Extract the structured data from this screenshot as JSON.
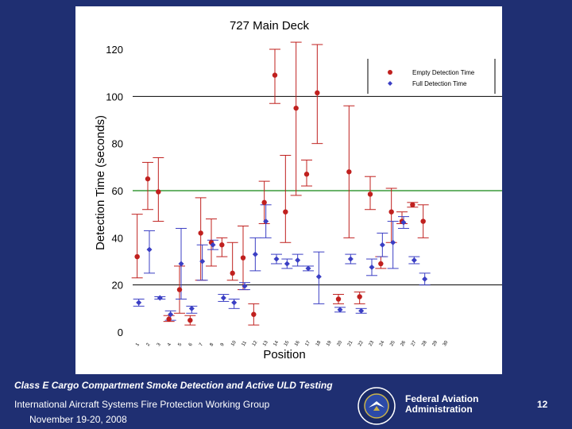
{
  "footer": {
    "title": "Class E Cargo Compartment Smoke Detection and Active ULD Testing",
    "org": "International Aircraft Systems Fire Protection Working Group",
    "date": "November 19-20, 2008",
    "faa_name": "Federal Aviation Administration",
    "page": "12"
  },
  "colors": {
    "background": "#1f2f72",
    "empty_series": "#c0201e",
    "full_series": "#3b3fc4",
    "reference_line": "#3a9a3a",
    "gridline": "#000000",
    "error_bar_empty": "#c0201e",
    "error_bar_full": "#3b3fc4"
  },
  "chart_data": {
    "type": "scatter",
    "title": "727 Main Deck",
    "xlabel": "Position",
    "ylabel": "Detection Time (seconds)",
    "ylim": [
      0,
      120
    ],
    "yticks": [
      0,
      20,
      40,
      60,
      80,
      100,
      120
    ],
    "grid": "horizontal at 20, 60 (green), 100",
    "reference_line": 60,
    "legend_position": "top-right",
    "categories": [
      "1",
      "2",
      "3",
      "4",
      "5",
      "6",
      "7",
      "8",
      "9",
      "10",
      "11",
      "12",
      "13",
      "14",
      "15",
      "16",
      "17",
      "18",
      "19",
      "20",
      "21",
      "22",
      "23",
      "24",
      "25",
      "26",
      "27",
      "28",
      "29",
      "30"
    ],
    "series": [
      {
        "name": "Empty Detection Time",
        "marker": "circle",
        "values": [
          32,
          65,
          59.5,
          5.5,
          18,
          5,
          42,
          38,
          37,
          25,
          31.5,
          7.5,
          55,
          109,
          51,
          95,
          67,
          101.5,
          14,
          68,
          15,
          58.5,
          29,
          51,
          47,
          54,
          47
        ],
        "x_index": [
          1,
          2,
          3,
          4,
          5,
          6,
          7,
          8,
          9,
          10,
          11,
          12,
          13,
          14,
          15,
          16,
          17,
          18,
          20,
          21,
          22,
          23,
          24,
          25,
          26,
          27,
          28
        ],
        "error_low": [
          23,
          52,
          47,
          4.5,
          8,
          3,
          22,
          28,
          32,
          22,
          18,
          3,
          46,
          97,
          38,
          58,
          62,
          80,
          12,
          40,
          12,
          52,
          27,
          38,
          46,
          53,
          40
        ],
        "error_high": [
          50,
          72,
          74,
          7,
          28,
          7,
          57,
          48,
          40,
          38,
          45,
          12,
          64,
          120,
          75,
          123,
          73,
          122,
          16,
          96,
          17,
          66,
          32,
          61,
          51,
          55,
          54
        ]
      },
      {
        "name": "Full Detection Time",
        "marker": "diamond",
        "values": [
          12.5,
          35,
          14.5,
          7.5,
          29,
          10,
          30,
          37,
          14.5,
          12.5,
          19.5,
          33,
          47,
          31,
          29,
          30.5,
          27,
          23.5,
          9.5,
          31,
          9,
          27.5,
          37,
          38,
          46.5,
          30.5,
          22.5
        ],
        "x_index": [
          1,
          2,
          3,
          4,
          5,
          6,
          7,
          8,
          9,
          10,
          11,
          12,
          13,
          14,
          15,
          16,
          17,
          18,
          20,
          21,
          22,
          23,
          24,
          25,
          26,
          27,
          28
        ],
        "error_low": [
          11,
          25,
          14,
          5,
          14,
          8,
          22,
          35,
          13,
          10,
          18,
          26,
          40,
          29,
          27,
          28,
          26,
          12,
          8.5,
          29,
          8,
          24,
          32,
          27,
          44,
          29,
          20
        ],
        "error_high": [
          14,
          43,
          15,
          9,
          44,
          11,
          37,
          39,
          16,
          14,
          21,
          40,
          54,
          33,
          31,
          33,
          28,
          34,
          10.5,
          33,
          10,
          31,
          42,
          47,
          49,
          32,
          25
        ]
      }
    ]
  }
}
